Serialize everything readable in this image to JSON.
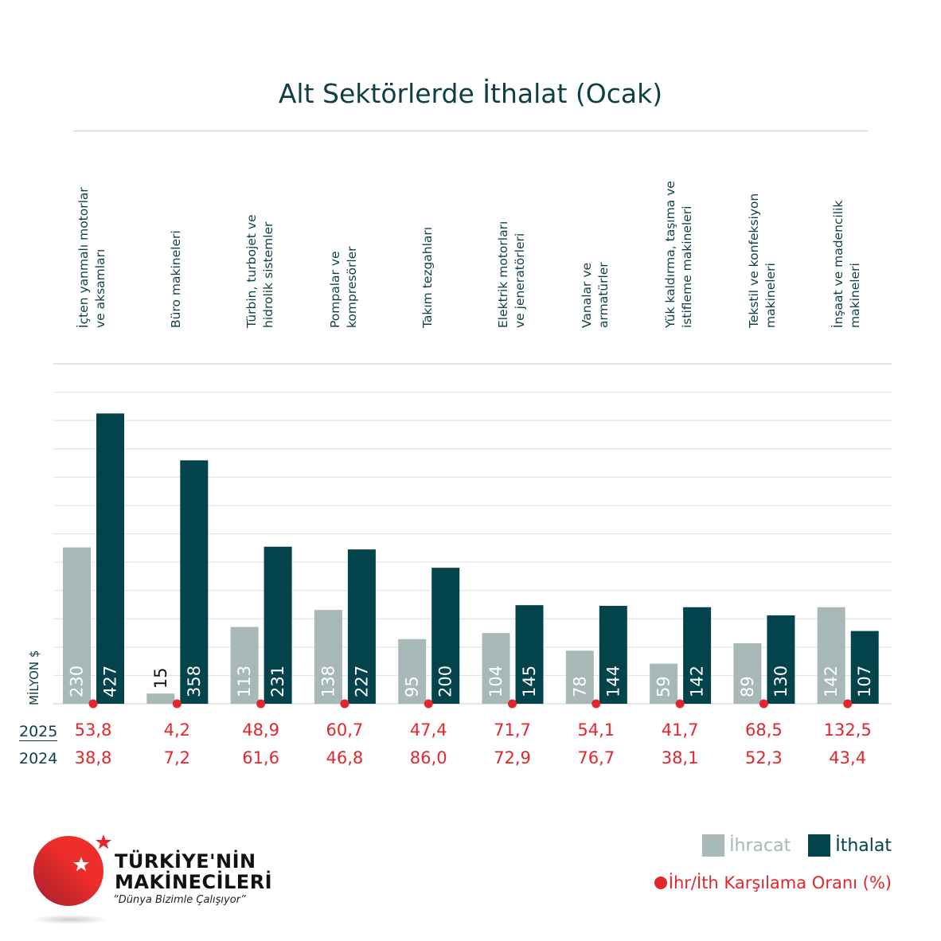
{
  "title": "Alt Sektörlerde İthalat (Ocak)",
  "colors": {
    "ihracat": "#a8b8b7",
    "ithalat": "#02434c",
    "ratio": "#e3262c",
    "text": "#0d3f45",
    "grid": "#e0e0e0"
  },
  "chart_data": {
    "type": "bar",
    "title": "Alt Sektörlerde İthalat (Ocak)",
    "ylabel": "MİLYON $",
    "ylim": [
      0,
      500
    ],
    "grid": true,
    "legend_placement": "bottom-right",
    "categories": [
      [
        "İçten yanmalı motorlar",
        "ve aksamları"
      ],
      [
        "Büro makineleri"
      ],
      [
        "Türbin, turbojet ve",
        "hidrolik sistemler"
      ],
      [
        "Pompalar ve",
        "kompresörler"
      ],
      [
        "Takım tezgahları"
      ],
      [
        "Elektrik motorları",
        "ve jeneratörleri"
      ],
      [
        "Vanalar ve",
        "armatürler"
      ],
      [
        "Yük kaldırma, taşıma ve",
        "istifleme makineleri"
      ],
      [
        "Tekstil ve konfeksiyon",
        "makineleri"
      ],
      [
        "İnşaat ve madencilik",
        "makineleri"
      ]
    ],
    "series": [
      {
        "name": "İhracat",
        "values": [
          230,
          15,
          113,
          138,
          95,
          104,
          78,
          59,
          89,
          142
        ]
      },
      {
        "name": "İthalat",
        "values": [
          427,
          358,
          231,
          227,
          200,
          145,
          144,
          142,
          130,
          107
        ]
      }
    ],
    "ratio_label": "İhr/İth Karşılama Oranı (%)",
    "ratio_rows": [
      {
        "year": "2025",
        "values": [
          "53,8",
          "4,2",
          "48,9",
          "60,7",
          "47,4",
          "71,7",
          "54,1",
          "41,7",
          "68,5",
          "132,5"
        ]
      },
      {
        "year": "2024",
        "values": [
          "38,8",
          "7,2",
          "61,6",
          "46,8",
          "86,0",
          "72,9",
          "76,7",
          "38,1",
          "52,3",
          "43,4"
        ]
      }
    ]
  },
  "logo": {
    "line1": "TÜRKİYE'NİN",
    "line2": "MAKİNECİLERİ",
    "slogan": "“Dünya Bizimle Çalışıyor”"
  }
}
